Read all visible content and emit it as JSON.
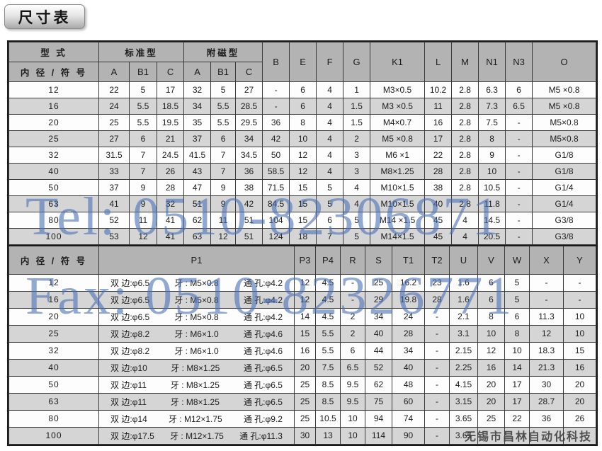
{
  "title": "尺寸表",
  "watermarks": {
    "tel": "Tel: 0510-82306871",
    "fax": "Fax: 0510-82326771",
    "company": "无锡市昌林自动化科技"
  },
  "colors": {
    "header_bg": "#b3b3b3",
    "alt_row_bg": "#d5d5d5",
    "border": "#3a3a3a",
    "watermark_blue": "#496FB7"
  },
  "table1": {
    "header": {
      "type": "型 式",
      "standard": "标准型",
      "magnetic": "附磁型",
      "id_label": "内 径 / 符 号",
      "sub": [
        "A",
        "B1",
        "C",
        "A",
        "B1",
        "C"
      ],
      "singles": [
        "B",
        "E",
        "F",
        "G",
        "K1",
        "L",
        "M",
        "N1",
        "N3",
        "O"
      ]
    },
    "rows": [
      {
        "id": "12",
        "values": [
          "22",
          "5",
          "17",
          "32",
          "5",
          "27",
          "-",
          "6",
          "4",
          "1",
          "M3×0.5",
          "10.2",
          "2.8",
          "6.3",
          "6",
          "M5 ×0.8"
        ]
      },
      {
        "id": "16",
        "values": [
          "24",
          "5.5",
          "18.5",
          "34",
          "5.5",
          "28.5",
          "-",
          "6",
          "4",
          "1.5",
          "M3 ×0.5",
          "11",
          "2.8",
          "7.3",
          "6.5",
          "M5 ×0.8"
        ]
      },
      {
        "id": "20",
        "values": [
          "25",
          "5.5",
          "19.5",
          "35",
          "5.5",
          "29.5",
          "36",
          "8",
          "4",
          "1.5",
          "M4×0.7",
          "16",
          "2.8",
          "7.5",
          "-",
          "M5×0.8"
        ]
      },
      {
        "id": "25",
        "values": [
          "27",
          "6",
          "21",
          "37",
          "6",
          "34",
          "42",
          "10",
          "4",
          "2",
          "M5 ×0.8",
          "17",
          "2.8",
          "8",
          "-",
          "M5×0.8"
        ]
      },
      {
        "id": "32",
        "values": [
          "31.5",
          "7",
          "24.5",
          "41.5",
          "7",
          "34.5",
          "50",
          "12",
          "4",
          "3",
          "M6 ×1",
          "22",
          "2.8",
          "9",
          "-",
          "G1/8"
        ]
      },
      {
        "id": "40",
        "values": [
          "33",
          "7",
          "26",
          "43",
          "7",
          "36",
          "58.5",
          "12",
          "4",
          "3",
          "M8×1.25",
          "28",
          "2.8",
          "10",
          "-",
          "G1/8"
        ]
      },
      {
        "id": "50",
        "values": [
          "37",
          "9",
          "28",
          "47",
          "9",
          "38",
          "71.5",
          "15",
          "5",
          "4",
          "M10×1.5",
          "38",
          "2.8",
          "10.5",
          "-",
          "G1/4"
        ]
      },
      {
        "id": "63",
        "values": [
          "41",
          "9",
          "32",
          "51",
          "9",
          "42",
          "84.5",
          "15",
          "5",
          "4",
          "M10×1.5",
          "40",
          "2.8",
          "11.8",
          "-",
          "G1/4"
        ]
      },
      {
        "id": "80",
        "values": [
          "52",
          "11",
          "41",
          "62",
          "11",
          "51",
          "104",
          "15",
          "6",
          "5",
          "M14 ×1.5",
          "45",
          "4",
          "14.5",
          "-",
          "G3/8"
        ]
      },
      {
        "id": "100",
        "values": [
          "53",
          "12",
          "41",
          "63",
          "12",
          "51",
          "124",
          "18",
          "7",
          "5",
          "M14×1.5",
          "45",
          "4",
          "20.5",
          "-",
          "G3/8"
        ]
      }
    ]
  },
  "table2": {
    "header": {
      "id_label": "内 径 / 符 号",
      "p1": "P1",
      "singles": [
        "P3",
        "P4",
        "R",
        "S",
        "T1",
        "T2",
        "U",
        "V",
        "W",
        "X",
        "Y"
      ]
    },
    "rows": [
      {
        "id": "12",
        "p1": [
          "双 边:φ6.5",
          "牙 : M5×0.8",
          "通 孔:φ4.2"
        ],
        "values": [
          "12",
          "4.5",
          "-",
          "25",
          "16.2",
          "23",
          "1.6",
          "6",
          "5",
          "-",
          "-"
        ]
      },
      {
        "id": "16",
        "p1": [
          "双 边:φ6.5",
          "牙 : M5×0.8",
          "通 孔:φ4.2"
        ],
        "values": [
          "12",
          "4.5",
          "-",
          "29",
          "19.8",
          "28",
          "1.6",
          "6",
          "5",
          "-",
          "-"
        ]
      },
      {
        "id": "20",
        "p1": [
          "双 边:φ6.5",
          "牙 : M5×0.8",
          "通 孔:φ4.2"
        ],
        "values": [
          "14",
          "4.5",
          "2",
          "34",
          "24",
          "-",
          "2.1",
          "8",
          "6",
          "11.3",
          "10"
        ]
      },
      {
        "id": "25",
        "p1": [
          "双 边:φ8.2",
          "牙 : M6×1.0",
          "通 孔:φ4.6"
        ],
        "values": [
          "15",
          "5.5",
          "2",
          "40",
          "28",
          "-",
          "3.1",
          "10",
          "8",
          "12",
          "10"
        ]
      },
      {
        "id": "32",
        "p1": [
          "双 边:φ8.2",
          "牙 : M6×1.0",
          "通 孔:φ4.6"
        ],
        "values": [
          "16",
          "5.5",
          "6",
          "44",
          "34",
          "-",
          "2.15",
          "12",
          "10",
          "18.3",
          "15"
        ]
      },
      {
        "id": "40",
        "p1": [
          "双 边:φ10",
          "牙 : M8×1.25",
          "通 孔:φ6.5"
        ],
        "values": [
          "20",
          "7.5",
          "6.5",
          "52",
          "40",
          "-",
          "2.25",
          "16",
          "14",
          "21.3",
          "16"
        ]
      },
      {
        "id": "50",
        "p1": [
          "双 边:φ11",
          "牙 : M8×1.25",
          "通 孔:φ6.5"
        ],
        "values": [
          "25",
          "8.5",
          "9.5",
          "62",
          "48",
          "-",
          "4.15",
          "20",
          "17",
          "30",
          "20"
        ]
      },
      {
        "id": "63",
        "p1": [
          "双 边:φ11",
          "牙 : M8×1.25",
          "通 孔:φ6.5"
        ],
        "values": [
          "25",
          "8.5",
          "9.5",
          "75",
          "60",
          "-",
          "3.15",
          "20",
          "17",
          "28.7",
          "20"
        ]
      },
      {
        "id": "80",
        "p1": [
          "双 边:φ14",
          "牙 : M12×1.75",
          "通 孔:φ9.2"
        ],
        "values": [
          "25",
          "10.5",
          "10",
          "94",
          "74",
          "-",
          "3.65",
          "25",
          "22",
          "36",
          "26"
        ]
      },
      {
        "id": "100",
        "p1": [
          "双 边:φ17.5",
          "牙 : M12×1.75",
          "通 孔:φ11.3"
        ],
        "values": [
          "30",
          "13",
          "10",
          "114",
          "90",
          "-",
          "3.65",
          "",
          "",
          "",
          ""
        ]
      }
    ]
  }
}
